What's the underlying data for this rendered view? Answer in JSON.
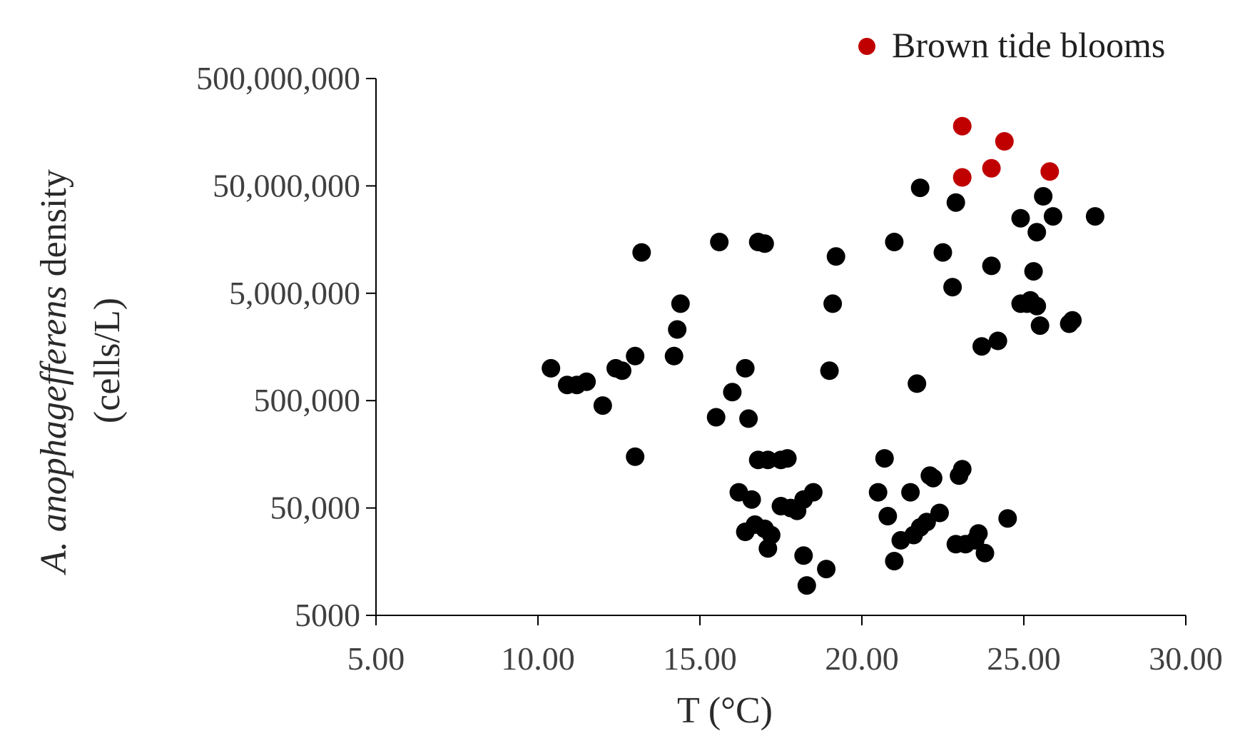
{
  "chart_data": {
    "type": "scatter",
    "xlabel": "T (°C)",
    "ylabel_species": "A. anophagefferens",
    "ylabel_rest": " density",
    "ylabel_units": "(cells/L)",
    "xlim": [
      5.0,
      30.0
    ],
    "ylim": [
      5000,
      500000000
    ],
    "y_scale": "log",
    "x_ticks": [
      5,
      10,
      15,
      20,
      25,
      30
    ],
    "x_tick_labels": [
      "5.00",
      "10.00",
      "15.00",
      "20.00",
      "25.00",
      "30.00"
    ],
    "y_ticks": [
      5000,
      50000,
      500000,
      5000000,
      50000000,
      500000000
    ],
    "y_tick_labels": [
      "5000",
      "50,000",
      "500,000",
      "5,000,000",
      "50,000,000",
      "500,000,000"
    ],
    "grid": false,
    "legend_position": "top-right",
    "legend_label": "Brown tide blooms",
    "colors": {
      "black_points": "#000000",
      "red_points": "#c00000"
    },
    "series": [
      {
        "color": "#000000",
        "points": [
          {
            "x": 10.4,
            "y": 1000000
          },
          {
            "x": 10.9,
            "y": 700000
          },
          {
            "x": 11.2,
            "y": 700000
          },
          {
            "x": 11.5,
            "y": 750000
          },
          {
            "x": 12.0,
            "y": 450000
          },
          {
            "x": 12.4,
            "y": 1000000
          },
          {
            "x": 12.6,
            "y": 950000
          },
          {
            "x": 13.0,
            "y": 1300000
          },
          {
            "x": 13.0,
            "y": 150000
          },
          {
            "x": 13.2,
            "y": 12000000
          },
          {
            "x": 14.2,
            "y": 1300000
          },
          {
            "x": 14.3,
            "y": 2300000
          },
          {
            "x": 14.4,
            "y": 4000000
          },
          {
            "x": 15.5,
            "y": 350000
          },
          {
            "x": 15.6,
            "y": 15000000
          },
          {
            "x": 16.0,
            "y": 600000
          },
          {
            "x": 16.2,
            "y": 70000
          },
          {
            "x": 16.4,
            "y": 1000000
          },
          {
            "x": 16.4,
            "y": 30000
          },
          {
            "x": 16.5,
            "y": 340000
          },
          {
            "x": 16.6,
            "y": 60000
          },
          {
            "x": 16.7,
            "y": 35000
          },
          {
            "x": 16.8,
            "y": 140000
          },
          {
            "x": 16.8,
            "y": 15000000
          },
          {
            "x": 17.0,
            "y": 14500000
          },
          {
            "x": 17.0,
            "y": 32000
          },
          {
            "x": 17.1,
            "y": 140000
          },
          {
            "x": 17.1,
            "y": 21000
          },
          {
            "x": 17.2,
            "y": 28000
          },
          {
            "x": 17.5,
            "y": 140000
          },
          {
            "x": 17.5,
            "y": 52000
          },
          {
            "x": 17.7,
            "y": 145000
          },
          {
            "x": 17.8,
            "y": 50000
          },
          {
            "x": 18.0,
            "y": 47000
          },
          {
            "x": 18.2,
            "y": 60000
          },
          {
            "x": 18.2,
            "y": 18000
          },
          {
            "x": 18.3,
            "y": 9500
          },
          {
            "x": 18.5,
            "y": 70000
          },
          {
            "x": 18.9,
            "y": 13500
          },
          {
            "x": 19.0,
            "y": 950000
          },
          {
            "x": 19.1,
            "y": 4000000
          },
          {
            "x": 19.2,
            "y": 11000000
          },
          {
            "x": 20.5,
            "y": 70000
          },
          {
            "x": 20.7,
            "y": 145000
          },
          {
            "x": 20.8,
            "y": 42000
          },
          {
            "x": 21.0,
            "y": 15000000
          },
          {
            "x": 21.0,
            "y": 16000
          },
          {
            "x": 21.2,
            "y": 25000
          },
          {
            "x": 21.5,
            "y": 70000
          },
          {
            "x": 21.6,
            "y": 28000
          },
          {
            "x": 21.7,
            "y": 720000
          },
          {
            "x": 21.8,
            "y": 48000000
          },
          {
            "x": 21.8,
            "y": 33000
          },
          {
            "x": 22.0,
            "y": 37000
          },
          {
            "x": 22.1,
            "y": 100000
          },
          {
            "x": 22.2,
            "y": 95000
          },
          {
            "x": 22.4,
            "y": 45000
          },
          {
            "x": 22.5,
            "y": 12000000
          },
          {
            "x": 22.8,
            "y": 5700000
          },
          {
            "x": 22.9,
            "y": 35000000
          },
          {
            "x": 22.9,
            "y": 23000
          },
          {
            "x": 23.0,
            "y": 100000
          },
          {
            "x": 23.1,
            "y": 115000
          },
          {
            "x": 23.2,
            "y": 23000
          },
          {
            "x": 23.5,
            "y": 25000
          },
          {
            "x": 23.6,
            "y": 29000
          },
          {
            "x": 23.7,
            "y": 1600000
          },
          {
            "x": 23.8,
            "y": 19000
          },
          {
            "x": 24.0,
            "y": 9000000
          },
          {
            "x": 24.2,
            "y": 1800000
          },
          {
            "x": 24.5,
            "y": 40000
          },
          {
            "x": 24.9,
            "y": 25000000
          },
          {
            "x": 24.9,
            "y": 4000000
          },
          {
            "x": 25.1,
            "y": 4000000
          },
          {
            "x": 25.2,
            "y": 4300000
          },
          {
            "x": 25.3,
            "y": 8000000
          },
          {
            "x": 25.4,
            "y": 3800000
          },
          {
            "x": 25.4,
            "y": 18500000
          },
          {
            "x": 25.5,
            "y": 2500000
          },
          {
            "x": 25.6,
            "y": 40000000
          },
          {
            "x": 25.9,
            "y": 26000000
          },
          {
            "x": 26.4,
            "y": 2600000
          },
          {
            "x": 26.5,
            "y": 2800000
          },
          {
            "x": 27.2,
            "y": 26000000
          }
        ]
      },
      {
        "name": "Brown tide blooms",
        "color": "#c00000",
        "points": [
          {
            "x": 23.1,
            "y": 60000000
          },
          {
            "x": 23.1,
            "y": 180000000
          },
          {
            "x": 24.0,
            "y": 73000000
          },
          {
            "x": 24.4,
            "y": 130000000
          },
          {
            "x": 25.8,
            "y": 68000000
          }
        ]
      }
    ]
  }
}
